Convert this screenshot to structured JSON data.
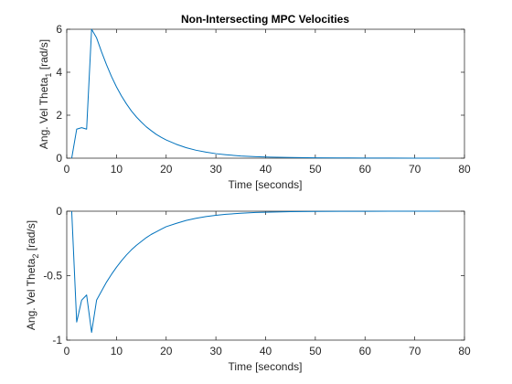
{
  "figure_title": "Non-Intersecting MPC Velocities",
  "colors": {
    "series": "#0072bd",
    "axes": "#262626"
  },
  "chart_data": [
    {
      "type": "line",
      "title": "Non-Intersecting MPC Velocities",
      "xlabel": "Time [seconds]",
      "ylabel_prefix": "Ang. Vel Theta",
      "ylabel_subscript": "1",
      "ylabel_suffix": " [rad/s]",
      "xlim": [
        0,
        80
      ],
      "ylim": [
        0,
        6
      ],
      "xticks": [
        0,
        10,
        20,
        30,
        40,
        50,
        60,
        70,
        80
      ],
      "yticks": [
        0,
        2,
        4,
        6
      ],
      "series": [
        {
          "name": "theta1_dot",
          "x": [
            1,
            2,
            3,
            4,
            5,
            6,
            7,
            8,
            9,
            10,
            11,
            12,
            13,
            14,
            15,
            16,
            17,
            18,
            19,
            20,
            22,
            24,
            26,
            28,
            30,
            32,
            35,
            38,
            41,
            45,
            50,
            55,
            60,
            65,
            70,
            75
          ],
          "y": [
            0,
            1.35,
            1.42,
            1.35,
            6.0,
            5.6,
            4.95,
            4.35,
            3.8,
            3.32,
            2.9,
            2.53,
            2.2,
            1.92,
            1.68,
            1.46,
            1.28,
            1.11,
            0.97,
            0.85,
            0.65,
            0.49,
            0.37,
            0.28,
            0.21,
            0.16,
            0.1,
            0.07,
            0.05,
            0.03,
            0.015,
            0.01,
            0.005,
            0.003,
            0.001,
            0.0
          ]
        }
      ]
    },
    {
      "type": "line",
      "title": "",
      "xlabel": "Time [seconds]",
      "ylabel_prefix": "Ang. Vel Theta",
      "ylabel_subscript": "2",
      "ylabel_suffix": " [rad/s]",
      "xlim": [
        0,
        80
      ],
      "ylim": [
        -1,
        0
      ],
      "xticks": [
        0,
        10,
        20,
        30,
        40,
        50,
        60,
        70,
        80
      ],
      "yticks": [
        -1,
        -0.5,
        0
      ],
      "series": [
        {
          "name": "theta2_dot",
          "x": [
            1,
            2,
            3,
            4,
            5,
            6,
            7,
            8,
            9,
            10,
            11,
            12,
            13,
            14,
            15,
            16,
            17,
            18,
            19,
            20,
            22,
            24,
            26,
            28,
            30,
            32,
            35,
            38,
            41,
            45,
            50,
            55,
            60,
            65,
            70,
            75
          ],
          "y": [
            0,
            -0.86,
            -0.69,
            -0.65,
            -0.94,
            -0.69,
            -0.62,
            -0.55,
            -0.49,
            -0.435,
            -0.385,
            -0.34,
            -0.3,
            -0.265,
            -0.235,
            -0.205,
            -0.18,
            -0.16,
            -0.14,
            -0.12,
            -0.095,
            -0.072,
            -0.055,
            -0.042,
            -0.032,
            -0.024,
            -0.016,
            -0.01,
            -0.007,
            -0.004,
            -0.002,
            -0.001,
            -0.0005,
            -0.0002,
            -0.0001,
            0
          ]
        }
      ]
    }
  ]
}
